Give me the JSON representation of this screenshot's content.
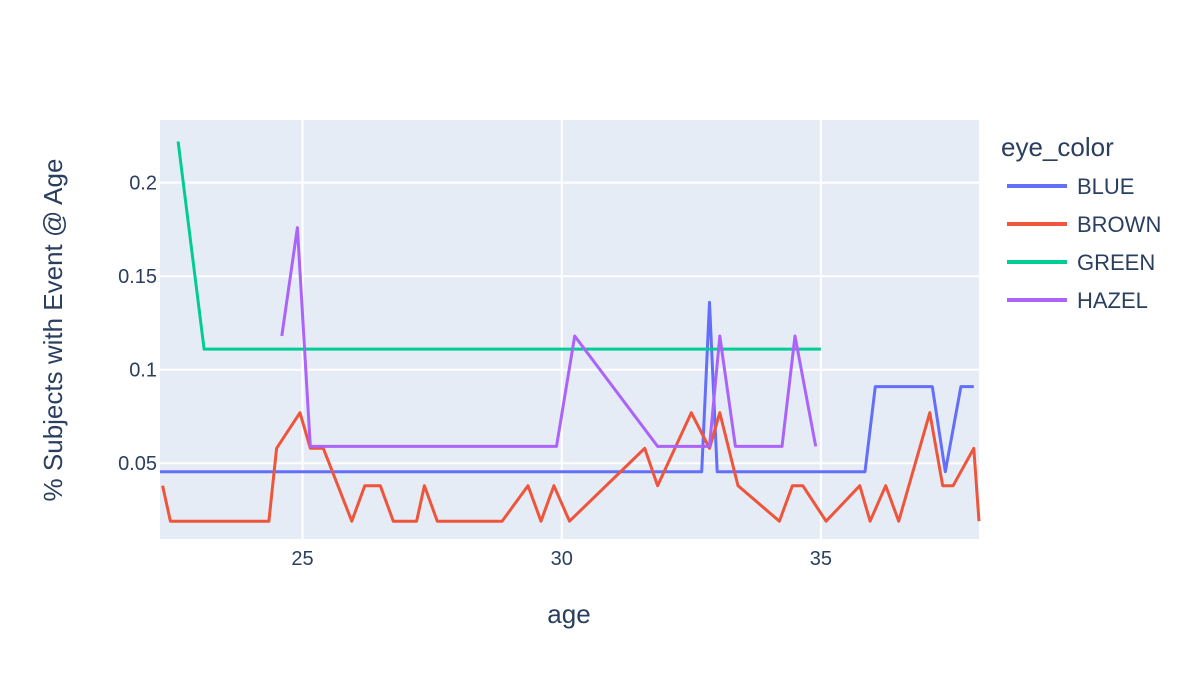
{
  "chart_data": {
    "type": "line",
    "title": "",
    "xlabel": "age",
    "ylabel": "% Subjects with Event @ Age",
    "xlim": [
      22.25,
      38.05
    ],
    "ylim": [
      0.0095,
      0.2335
    ],
    "xticks": [
      25,
      30,
      35
    ],
    "xtick_labels": [
      "25",
      "30",
      "35"
    ],
    "yticks": [
      0.05,
      0.1,
      0.15,
      0.2
    ],
    "ytick_labels": [
      "0.05",
      "0.1",
      "0.15",
      "0.2"
    ],
    "grid": true,
    "legend_title": "eye_color",
    "legend_position": "right",
    "plot_background": "#E5ECF6",
    "series": [
      {
        "name": "BLUE",
        "color": "#636EFA",
        "x": [
          22.25,
          32.7,
          32.85,
          33.0,
          35.85,
          36.05,
          37.15,
          37.4,
          37.7,
          37.95
        ],
        "y": [
          0.0455,
          0.0455,
          0.136,
          0.0455,
          0.0455,
          0.091,
          0.091,
          0.0455,
          0.091,
          0.091
        ]
      },
      {
        "name": "BROWN",
        "color": "#EF553B",
        "x": [
          22.3,
          22.45,
          24.35,
          24.5,
          24.95,
          25.15,
          25.4,
          25.95,
          26.2,
          26.5,
          26.75,
          27.2,
          27.35,
          27.6,
          28.85,
          29.35,
          29.6,
          29.85,
          30.15,
          31.6,
          31.85,
          32.5,
          32.85,
          33.05,
          33.4,
          34.2,
          34.45,
          34.65,
          35.1,
          35.75,
          35.95,
          36.25,
          36.5,
          37.1,
          37.35,
          37.55,
          37.95,
          38.05
        ],
        "y": [
          0.038,
          0.019,
          0.019,
          0.058,
          0.077,
          0.058,
          0.058,
          0.019,
          0.038,
          0.038,
          0.019,
          0.019,
          0.038,
          0.019,
          0.019,
          0.038,
          0.019,
          0.038,
          0.019,
          0.058,
          0.038,
          0.077,
          0.058,
          0.077,
          0.038,
          0.019,
          0.038,
          0.038,
          0.019,
          0.038,
          0.019,
          0.038,
          0.019,
          0.077,
          0.038,
          0.038,
          0.058,
          0.019
        ]
      },
      {
        "name": "GREEN",
        "color": "#00CC96",
        "x": [
          22.6,
          23.1,
          35.0
        ],
        "y": [
          0.222,
          0.111,
          0.111
        ]
      },
      {
        "name": "HAZEL",
        "color": "#AB63FA",
        "x": [
          24.6,
          24.9,
          25.15,
          29.9,
          30.25,
          31.85,
          32.85,
          33.05,
          33.35,
          34.25,
          34.5,
          34.9
        ],
        "y": [
          0.118,
          0.176,
          0.059,
          0.059,
          0.118,
          0.059,
          0.059,
          0.118,
          0.059,
          0.059,
          0.118,
          0.059
        ]
      }
    ]
  }
}
